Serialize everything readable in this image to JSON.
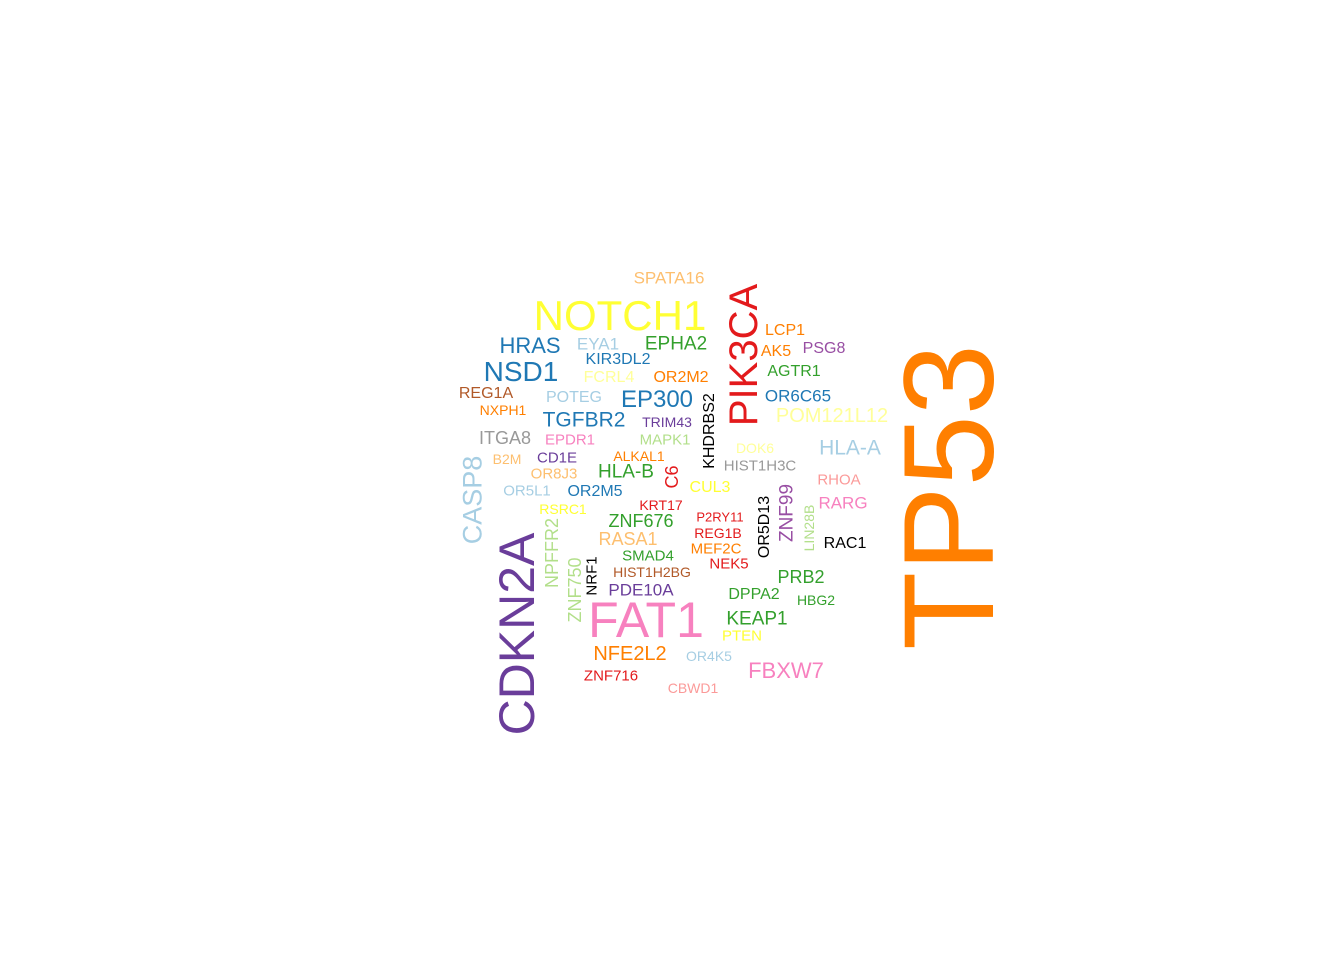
{
  "word_cloud": {
    "words": [
      {
        "text": "TP53",
        "color": "#FF7F00",
        "rotated": true
      },
      {
        "text": "CDKN2A",
        "color": "#6A3D9A",
        "rotated": true
      },
      {
        "text": "NOTCH1",
        "color": "#FFFF33",
        "rotated": false
      },
      {
        "text": "FAT1",
        "color": "#F781BF",
        "rotated": false
      },
      {
        "text": "PIK3CA",
        "color": "#E31A1C",
        "rotated": true
      },
      {
        "text": "NSD1",
        "color": "#1F78B4",
        "rotated": false
      },
      {
        "text": "CASP8",
        "color": "#A6CEE3",
        "rotated": true
      },
      {
        "text": "HRAS",
        "color": "#1F78B4",
        "rotated": false
      },
      {
        "text": "EP300",
        "color": "#1F78B4",
        "rotated": false
      },
      {
        "text": "FBXW7",
        "color": "#F781BF",
        "rotated": false
      },
      {
        "text": "TGFBR2",
        "color": "#1F78B4",
        "rotated": false
      },
      {
        "text": "HLA-A",
        "color": "#A6CEE3",
        "rotated": false
      },
      {
        "text": "NFE2L2",
        "color": "#FF7F00",
        "rotated": false
      },
      {
        "text": "POM121L12",
        "color": "#FFFF99",
        "rotated": false
      },
      {
        "text": "EPHA2",
        "color": "#33A02C",
        "rotated": false
      },
      {
        "text": "HLA-B",
        "color": "#33A02C",
        "rotated": false
      },
      {
        "text": "KEAP1",
        "color": "#33A02C",
        "rotated": false
      },
      {
        "text": "PRB2",
        "color": "#33A02C",
        "rotated": false
      },
      {
        "text": "PDE10A",
        "color": "#6A3D9A",
        "rotated": false
      },
      {
        "text": "ZNF676",
        "color": "#33A02C",
        "rotated": false
      },
      {
        "text": "ITGA8",
        "color": "#999999",
        "rotated": false
      },
      {
        "text": "ZNF99",
        "color": "#984EA3",
        "rotated": true
      },
      {
        "text": "C6",
        "color": "#E31A1C",
        "rotated": true
      },
      {
        "text": "RASA1",
        "color": "#FDBF6F",
        "rotated": false
      },
      {
        "text": "ZNF750",
        "color": "#B2DF8A",
        "rotated": true
      },
      {
        "text": "NPFFR2",
        "color": "#B2DF8A",
        "rotated": true
      },
      {
        "text": "EYA1",
        "color": "#A6CEE3",
        "rotated": false
      },
      {
        "text": "SPATA16",
        "color": "#FDBF6F",
        "rotated": false
      },
      {
        "text": "LCP1",
        "color": "#FF7F00",
        "rotated": false
      },
      {
        "text": "PSG8",
        "color": "#984EA3",
        "rotated": false
      },
      {
        "text": "AK5",
        "color": "#FF7F00",
        "rotated": false
      },
      {
        "text": "AGTR1",
        "color": "#33A02C",
        "rotated": false
      },
      {
        "text": "OR6C65",
        "color": "#1F78B4",
        "rotated": false
      },
      {
        "text": "KIR3DL2",
        "color": "#1F78B4",
        "rotated": false
      },
      {
        "text": "FCRL4",
        "color": "#FFFF99",
        "rotated": false
      },
      {
        "text": "OR2M2",
        "color": "#FF7F00",
        "rotated": false
      },
      {
        "text": "REG1A",
        "color": "#B15928",
        "rotated": false
      },
      {
        "text": "NXPH1",
        "color": "#FF7F00",
        "rotated": false
      },
      {
        "text": "POTEG",
        "color": "#A6CEE3",
        "rotated": false
      },
      {
        "text": "TRIM43",
        "color": "#6A3D9A",
        "rotated": false
      },
      {
        "text": "KHDRBS2",
        "color": "#000000",
        "rotated": true
      },
      {
        "text": "EPDR1",
        "color": "#F781BF",
        "rotated": false
      },
      {
        "text": "MAPK1",
        "color": "#B2DF8A",
        "rotated": false
      },
      {
        "text": "DOK6",
        "color": "#FFFF99",
        "rotated": false
      },
      {
        "text": "B2M",
        "color": "#FDBF6F",
        "rotated": false
      },
      {
        "text": "CD1E",
        "color": "#6A3D9A",
        "rotated": false
      },
      {
        "text": "ALKAL1",
        "color": "#FF7F00",
        "rotated": false
      },
      {
        "text": "HIST1H3C",
        "color": "#999999",
        "rotated": false
      },
      {
        "text": "OR8J3",
        "color": "#FDBF6F",
        "rotated": false
      },
      {
        "text": "RHOA",
        "color": "#FB9A99",
        "rotated": false
      },
      {
        "text": "CUL3",
        "color": "#FFFF33",
        "rotated": false
      },
      {
        "text": "OR5L1",
        "color": "#A6CEE3",
        "rotated": false
      },
      {
        "text": "OR2M5",
        "color": "#1F78B4",
        "rotated": false
      },
      {
        "text": "OR5D13",
        "color": "#000000",
        "rotated": true
      },
      {
        "text": "RARG",
        "color": "#F781BF",
        "rotated": false
      },
      {
        "text": "KRT17",
        "color": "#E31A1C",
        "rotated": false
      },
      {
        "text": "RSRC1",
        "color": "#FFFF33",
        "rotated": false
      },
      {
        "text": "P2RY11",
        "color": "#E31A1C",
        "rotated": false
      },
      {
        "text": "LIN28B",
        "color": "#B2DF8A",
        "rotated": true
      },
      {
        "text": "REG1B",
        "color": "#E31A1C",
        "rotated": false
      },
      {
        "text": "RAC1",
        "color": "#000000",
        "rotated": false
      },
      {
        "text": "MEF2C",
        "color": "#FF7F00",
        "rotated": false
      },
      {
        "text": "SMAD4",
        "color": "#33A02C",
        "rotated": false
      },
      {
        "text": "NEK5",
        "color": "#E31A1C",
        "rotated": false
      },
      {
        "text": "NRF1",
        "color": "#000000",
        "rotated": true
      },
      {
        "text": "HIST1H2BG",
        "color": "#B15928",
        "rotated": false
      },
      {
        "text": "DPPA2",
        "color": "#33A02C",
        "rotated": false
      },
      {
        "text": "HBG2",
        "color": "#33A02C",
        "rotated": false
      },
      {
        "text": "PTEN",
        "color": "#FFFF33",
        "rotated": false
      },
      {
        "text": "OR4K5",
        "color": "#A6CEE3",
        "rotated": false
      },
      {
        "text": "ZNF716",
        "color": "#E31A1C",
        "rotated": false
      },
      {
        "text": "CBWD1",
        "color": "#FB9A99",
        "rotated": false
      }
    ]
  }
}
